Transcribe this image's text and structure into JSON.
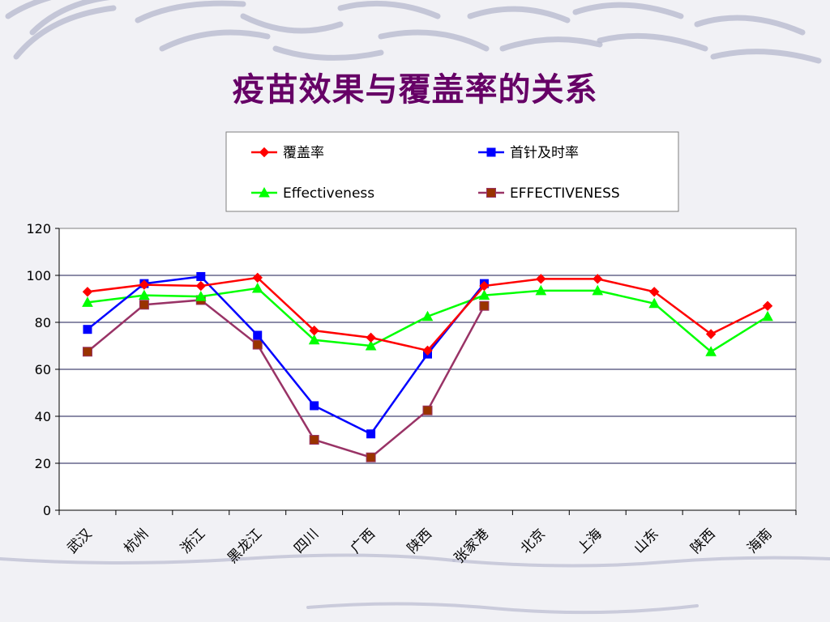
{
  "slide": {
    "title": "疫苗效果与覆盖率的关系",
    "background_color": "#f1f1f5",
    "decoration_color": "#b9bbd0",
    "title_color": "#660066"
  },
  "chart_data": {
    "type": "line",
    "categories": [
      "武汉",
      "杭州",
      "浙江",
      "黑龙江",
      "四川",
      "广西",
      "陕西",
      "张家港",
      "北京",
      "上海",
      "山东",
      "陕西",
      "海南"
    ],
    "ylim": [
      0,
      120
    ],
    "yticks": [
      0,
      20,
      40,
      60,
      80,
      100,
      120
    ],
    "grid": true,
    "legend_position": "top",
    "series": [
      {
        "name": "覆盖率",
        "color": "#ff0000",
        "marker": "diamond",
        "values": [
          93,
          96,
          95.5,
          99,
          76.5,
          73.5,
          68,
          95.5,
          98.5,
          98.5,
          93,
          75,
          87
        ]
      },
      {
        "name": "首针及时率",
        "color": "#0000ff",
        "marker": "square",
        "values": [
          77,
          96.5,
          99.5,
          74.5,
          44.5,
          32.5,
          66.5,
          96.5,
          null,
          null,
          null,
          null,
          null
        ]
      },
      {
        "name": "Effectiveness",
        "color": "#00ff00",
        "marker": "triangle",
        "values": [
          88.5,
          91.5,
          91,
          94.5,
          72.5,
          70,
          82.5,
          91.5,
          93.5,
          93.5,
          88,
          67.5,
          82.5
        ]
      },
      {
        "name": "EFFECTIVENESS",
        "color": "#993366",
        "marker": "square-filled",
        "values": [
          67.5,
          87.5,
          89.5,
          70.5,
          30,
          22.5,
          42.5,
          87,
          null,
          null,
          null,
          null,
          null
        ]
      }
    ]
  }
}
